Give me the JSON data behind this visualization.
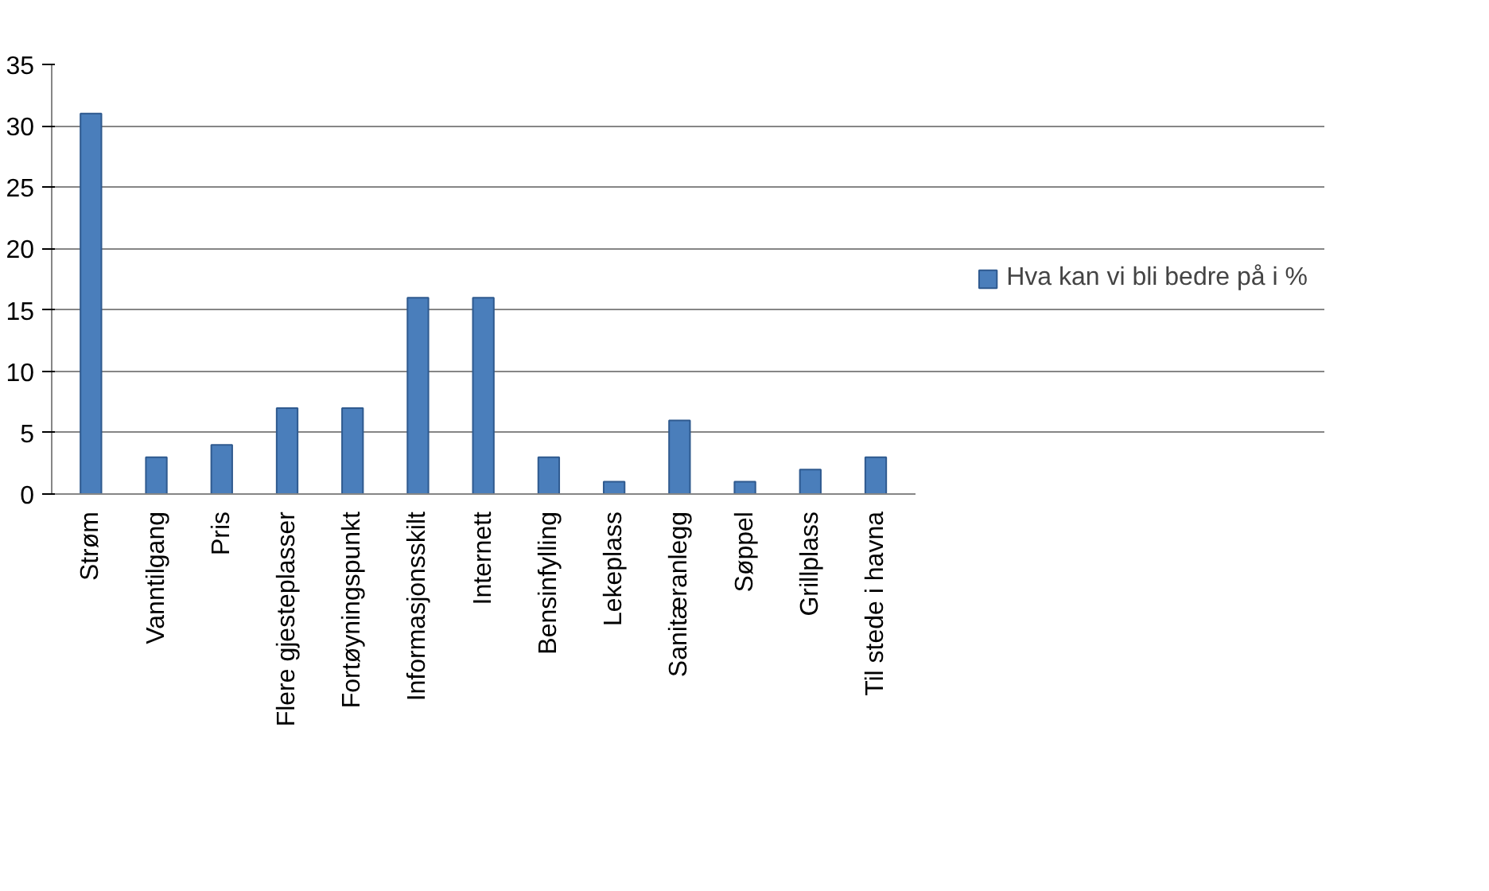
{
  "chart_data": {
    "type": "bar",
    "categories": [
      "Strøm",
      "Vanntilgang",
      "Pris",
      "Flere gjesteplasser",
      "Fortøyningspunkt",
      "Informasjonsskilt",
      "Internett",
      "Bensinfylling",
      "Lekeplass",
      "Sanitæranlegg",
      "Søppel",
      "Grillplass",
      "Til stede i havna"
    ],
    "series": [
      {
        "name": "Hva kan vi bli bedre på i %",
        "color": "#4a7ebb",
        "values": [
          31,
          3,
          4,
          7,
          7,
          16,
          16,
          3,
          1,
          6,
          1,
          2,
          3
        ]
      }
    ],
    "ylim": [
      0,
      35
    ],
    "yticks": [
      0,
      5,
      10,
      15,
      20,
      25,
      30,
      35
    ],
    "grid": "y",
    "legend": "right"
  }
}
